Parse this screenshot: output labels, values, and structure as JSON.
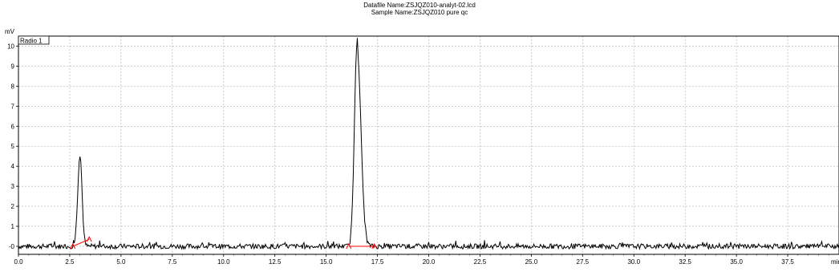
{
  "header": {
    "datafile": "Datafile Name:ZSJQZ010-analyt-02.lcd",
    "sample": "Sample Name:ZSJQZ010 pure qc"
  },
  "chart_data": {
    "type": "line",
    "title": "",
    "ylabel": "mV",
    "xlabel": "min",
    "channel": "Radio 1",
    "xlim": [
      0,
      40
    ],
    "ylim": [
      -0.4,
      10.5
    ],
    "x_ticks": [
      "0.0",
      "2.5",
      "5.0",
      "7.5",
      "10.0",
      "12.5",
      "15.0",
      "17.5",
      "20.0",
      "22.5",
      "25.0",
      "27.5",
      "30.0",
      "32.5",
      "35.0",
      "37.5",
      "min"
    ],
    "y_ticks": [
      "-0",
      "1",
      "2",
      "3",
      "4",
      "5",
      "6",
      "7",
      "8",
      "9",
      "10"
    ],
    "grid": true,
    "colors": {
      "trace": "#000000",
      "baseline": "#ff0000",
      "grid": "#b0b0b0"
    },
    "series": [
      {
        "name": "Radio 1",
        "peaks": [
          {
            "apex_min": 3.0,
            "height_mV": 4.6,
            "start_min": 2.65,
            "end_min": 3.45
          },
          {
            "apex_min": 16.5,
            "height_mV": 10.1,
            "start_min": 16.1,
            "end_min": 17.35
          }
        ],
        "noise_amplitude_mV": 0.25
      }
    ]
  }
}
